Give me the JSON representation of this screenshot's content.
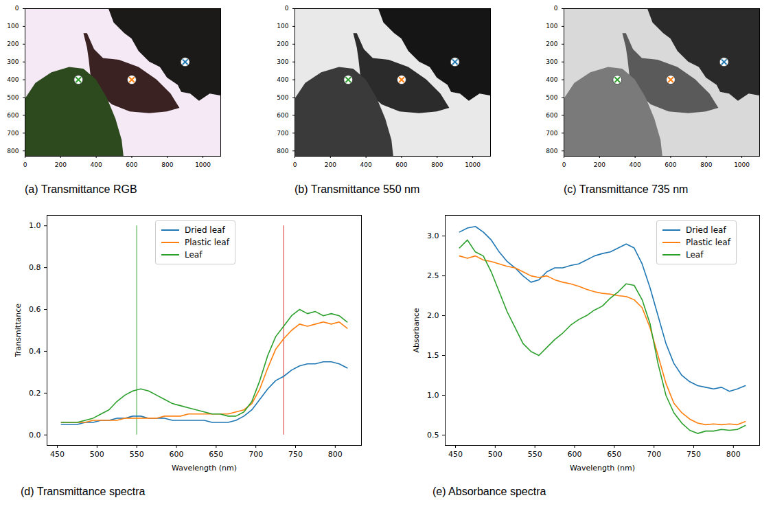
{
  "chart_data": [
    {
      "type": "image",
      "title": "(a) Transmittance RGB",
      "xlim": [
        0,
        1100
      ],
      "ylim": [
        830,
        0
      ],
      "xticks": [
        0,
        200,
        400,
        600,
        800,
        1000
      ],
      "yticks": [
        0,
        100,
        200,
        300,
        400,
        500,
        600,
        700,
        800
      ],
      "x": [
        300,
        600,
        900
      ],
      "values": [
        400,
        400,
        300
      ],
      "colors": [
        "#2ca02c",
        "#ff7f0e",
        "#1f77b4"
      ],
      "marker": "x"
    },
    {
      "type": "image",
      "title": "(b) Transmittance 550 nm",
      "xlim": [
        0,
        1100
      ],
      "ylim": [
        830,
        0
      ],
      "xticks": [
        0,
        200,
        400,
        600,
        800,
        1000
      ],
      "yticks": [
        0,
        100,
        200,
        300,
        400,
        500,
        600,
        700,
        800
      ],
      "x": [
        300,
        600,
        900
      ],
      "values": [
        400,
        400,
        300
      ],
      "colors": [
        "#2ca02c",
        "#ff7f0e",
        "#1f77b4"
      ],
      "marker": "x"
    },
    {
      "type": "image",
      "title": "(c) Transmittance 735 nm",
      "xlim": [
        0,
        1100
      ],
      "ylim": [
        830,
        0
      ],
      "xticks": [
        0,
        200,
        400,
        600,
        800,
        1000
      ],
      "yticks": [
        0,
        100,
        200,
        300,
        400,
        500,
        600,
        700,
        800
      ],
      "x": [
        300,
        600,
        900
      ],
      "values": [
        400,
        400,
        300
      ],
      "colors": [
        "#2ca02c",
        "#ff7f0e",
        "#1f77b4"
      ],
      "marker": "x"
    },
    {
      "type": "line",
      "title": "(d) Transmittance spectra",
      "x_label": "Wavelength (nm)",
      "y_label": "Transmittance",
      "xlim": [
        437,
        833
      ],
      "ylim": [
        -0.05,
        1.05
      ],
      "xticks": [
        450,
        500,
        550,
        600,
        650,
        700,
        750,
        800
      ],
      "yticks": [
        {
          "value": 0,
          "label": "0.0"
        },
        0.2,
        0.4,
        0.6,
        0.8,
        {
          "value": 1,
          "label": "1.0"
        }
      ],
      "legend": "upper center",
      "x": [
        455,
        465,
        475,
        485,
        495,
        505,
        515,
        525,
        535,
        545,
        555,
        565,
        575,
        585,
        595,
        605,
        615,
        625,
        635,
        645,
        655,
        665,
        675,
        685,
        695,
        705,
        715,
        725,
        735,
        745,
        755,
        765,
        775,
        785,
        795,
        805,
        815
      ],
      "series": [
        {
          "name": "Dried leaf",
          "color": "#1f77b4",
          "values": [
            0.05,
            0.05,
            0.05,
            0.06,
            0.06,
            0.07,
            0.07,
            0.08,
            0.08,
            0.09,
            0.09,
            0.08,
            0.08,
            0.08,
            0.07,
            0.07,
            0.07,
            0.07,
            0.07,
            0.06,
            0.06,
            0.06,
            0.07,
            0.09,
            0.12,
            0.17,
            0.22,
            0.26,
            0.28,
            0.31,
            0.33,
            0.34,
            0.34,
            0.35,
            0.35,
            0.34,
            0.32
          ]
        },
        {
          "name": "Plastic leaf",
          "color": "#ff7f0e",
          "values": [
            0.06,
            0.06,
            0.06,
            0.06,
            0.07,
            0.07,
            0.07,
            0.07,
            0.08,
            0.08,
            0.08,
            0.08,
            0.08,
            0.09,
            0.09,
            0.09,
            0.1,
            0.1,
            0.1,
            0.1,
            0.1,
            0.1,
            0.11,
            0.12,
            0.15,
            0.22,
            0.32,
            0.41,
            0.46,
            0.5,
            0.53,
            0.52,
            0.53,
            0.54,
            0.53,
            0.54,
            0.51
          ]
        },
        {
          "name": "Leaf",
          "color": "#2ca02c",
          "values": [
            0.06,
            0.06,
            0.06,
            0.07,
            0.08,
            0.1,
            0.12,
            0.16,
            0.19,
            0.21,
            0.22,
            0.21,
            0.19,
            0.17,
            0.15,
            0.14,
            0.13,
            0.12,
            0.11,
            0.1,
            0.1,
            0.09,
            0.09,
            0.11,
            0.16,
            0.26,
            0.38,
            0.47,
            0.52,
            0.57,
            0.6,
            0.58,
            0.59,
            0.57,
            0.58,
            0.57,
            0.54
          ]
        }
      ],
      "annotations": [
        {
          "type": "vline",
          "x": 550,
          "y": [
            0,
            1
          ],
          "color": "#2ca02c"
        },
        {
          "type": "vline",
          "x": 735,
          "y": [
            0,
            1
          ],
          "color": "#d62728"
        }
      ]
    },
    {
      "type": "line",
      "title": "(e) Absorbance spectra",
      "x_label": "Wavelength (nm)",
      "y_label": "Absorbance",
      "xlim": [
        437,
        833
      ],
      "ylim": [
        0.37,
        3.26
      ],
      "xticks": [
        450,
        500,
        550,
        600,
        650,
        700,
        750,
        800
      ],
      "yticks": [
        0.5,
        {
          "value": 1,
          "label": "1.0"
        },
        1.5,
        {
          "value": 2,
          "label": "2.0"
        },
        2.5,
        {
          "value": 3,
          "label": "3.0"
        }
      ],
      "legend": "upper right",
      "x": [
        455,
        465,
        475,
        485,
        495,
        505,
        515,
        525,
        535,
        545,
        555,
        565,
        575,
        585,
        595,
        605,
        615,
        625,
        635,
        645,
        655,
        665,
        675,
        685,
        695,
        705,
        715,
        725,
        735,
        745,
        755,
        765,
        775,
        785,
        795,
        805,
        815
      ],
      "series": [
        {
          "name": "Dried leaf",
          "color": "#1f77b4",
          "values": [
            3.05,
            3.1,
            3.12,
            3.05,
            2.95,
            2.8,
            2.68,
            2.6,
            2.5,
            2.42,
            2.45,
            2.55,
            2.6,
            2.6,
            2.63,
            2.65,
            2.7,
            2.75,
            2.78,
            2.8,
            2.85,
            2.9,
            2.85,
            2.65,
            2.35,
            2.0,
            1.65,
            1.4,
            1.25,
            1.17,
            1.12,
            1.1,
            1.08,
            1.1,
            1.05,
            1.08,
            1.12
          ]
        },
        {
          "name": "Plastic leaf",
          "color": "#ff7f0e",
          "values": [
            2.75,
            2.72,
            2.75,
            2.7,
            2.68,
            2.65,
            2.62,
            2.6,
            2.55,
            2.5,
            2.48,
            2.5,
            2.45,
            2.42,
            2.4,
            2.37,
            2.33,
            2.3,
            2.28,
            2.27,
            2.25,
            2.24,
            2.2,
            2.1,
            1.85,
            1.5,
            1.15,
            0.9,
            0.78,
            0.7,
            0.65,
            0.63,
            0.64,
            0.63,
            0.64,
            0.63,
            0.67
          ]
        },
        {
          "name": "Leaf",
          "color": "#2ca02c",
          "values": [
            2.85,
            2.95,
            2.8,
            2.75,
            2.55,
            2.3,
            2.05,
            1.85,
            1.65,
            1.55,
            1.5,
            1.6,
            1.7,
            1.78,
            1.88,
            1.95,
            2.0,
            2.07,
            2.12,
            2.22,
            2.3,
            2.4,
            2.38,
            2.2,
            1.9,
            1.4,
            1.0,
            0.78,
            0.65,
            0.56,
            0.52,
            0.55,
            0.55,
            0.57,
            0.56,
            0.57,
            0.62
          ]
        }
      ]
    }
  ]
}
